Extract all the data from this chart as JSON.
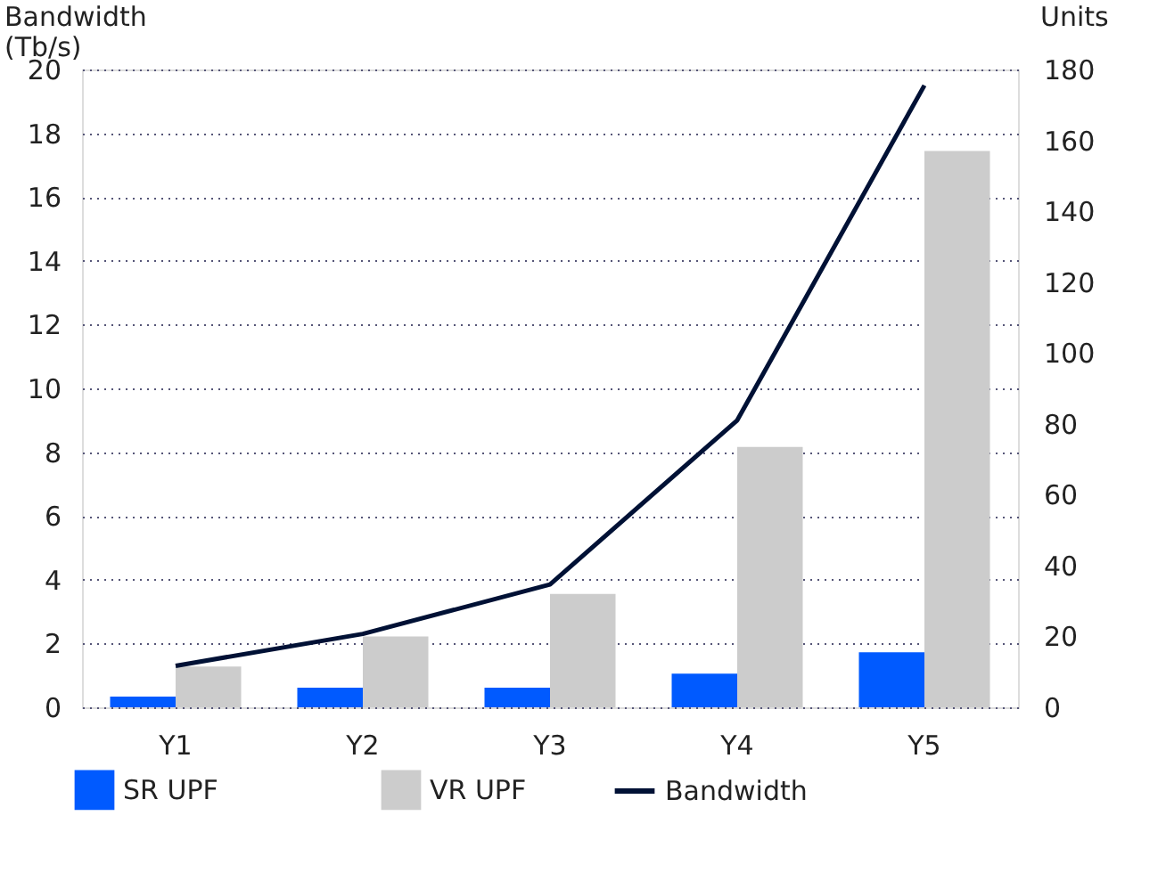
{
  "chart_data": {
    "type": "bar",
    "categories": [
      "Y1",
      "Y2",
      "Y3",
      "Y4",
      "Y5"
    ],
    "ylabel": "Bandwidth\n(Tb/s)",
    "y2label": "Units",
    "ylim": [
      0,
      20
    ],
    "yticks": [
      0,
      2,
      4,
      6,
      8,
      10,
      12,
      14,
      16,
      18,
      20
    ],
    "y2lim": [
      0,
      180
    ],
    "y2ticks": [
      0,
      20,
      40,
      60,
      80,
      100,
      120,
      140,
      160,
      180
    ],
    "grid": "y",
    "legend": "bottom",
    "series": [
      {
        "name": "SR UPF",
        "color": "#005aff",
        "axis": "y2",
        "values": [
          3,
          5.5,
          5.5,
          9.5,
          15.5
        ]
      },
      {
        "name": "VR UPF",
        "color": "#cccccc",
        "axis": "y2",
        "values": [
          11.5,
          20,
          32,
          73.5,
          157
        ]
      },
      {
        "name": "Bandwidth",
        "type": "line",
        "color": "#001135",
        "values": [
          1.3,
          2.3,
          3.85,
          9,
          19.5
        ]
      }
    ]
  }
}
